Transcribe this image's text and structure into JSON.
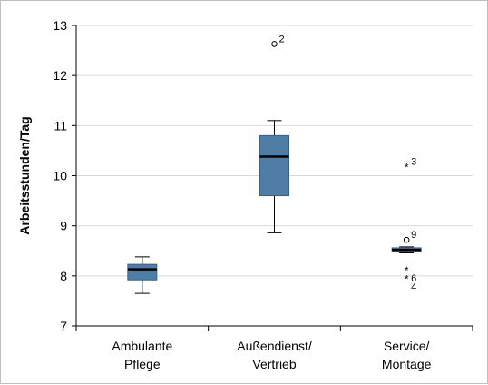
{
  "chart_data": {
    "type": "boxplot",
    "ylabel": "Arbeitsstunden/Tag",
    "ylim": [
      7,
      13
    ],
    "yticks": [
      7,
      8,
      9,
      10,
      11,
      12,
      13
    ],
    "grid": true,
    "categories": [
      {
        "lines": [
          "Ambulante",
          "Pflege"
        ]
      },
      {
        "lines": [
          "Außendienst/",
          "Vertrieb"
        ]
      },
      {
        "lines": [
          "Service/",
          "Montage"
        ]
      }
    ],
    "boxes": [
      {
        "whisker_low": 7.65,
        "q1": 7.92,
        "median": 8.13,
        "q3": 8.23,
        "whisker_high": 8.38,
        "outliers": []
      },
      {
        "whisker_low": 8.86,
        "q1": 9.6,
        "median": 10.38,
        "q3": 10.8,
        "whisker_high": 11.1,
        "outliers": [
          {
            "value": 12.63,
            "marker": "o",
            "label": "2"
          }
        ]
      },
      {
        "whisker_low": 8.46,
        "q1": 8.48,
        "median": 8.52,
        "q3": 8.56,
        "whisker_high": 8.58,
        "outliers": [
          {
            "value": 10.18,
            "marker": "*",
            "label": "3"
          },
          {
            "value": 8.72,
            "marker": "o",
            "label": "9"
          },
          {
            "value": 8.12,
            "marker": "*",
            "label": "6"
          },
          {
            "value": 7.95,
            "marker": "*",
            "label": "4"
          }
        ]
      }
    ],
    "colors": {
      "box_fill": "#4f7da6",
      "box_stroke": "#3a6186",
      "grid": "#d9d9d9"
    }
  }
}
